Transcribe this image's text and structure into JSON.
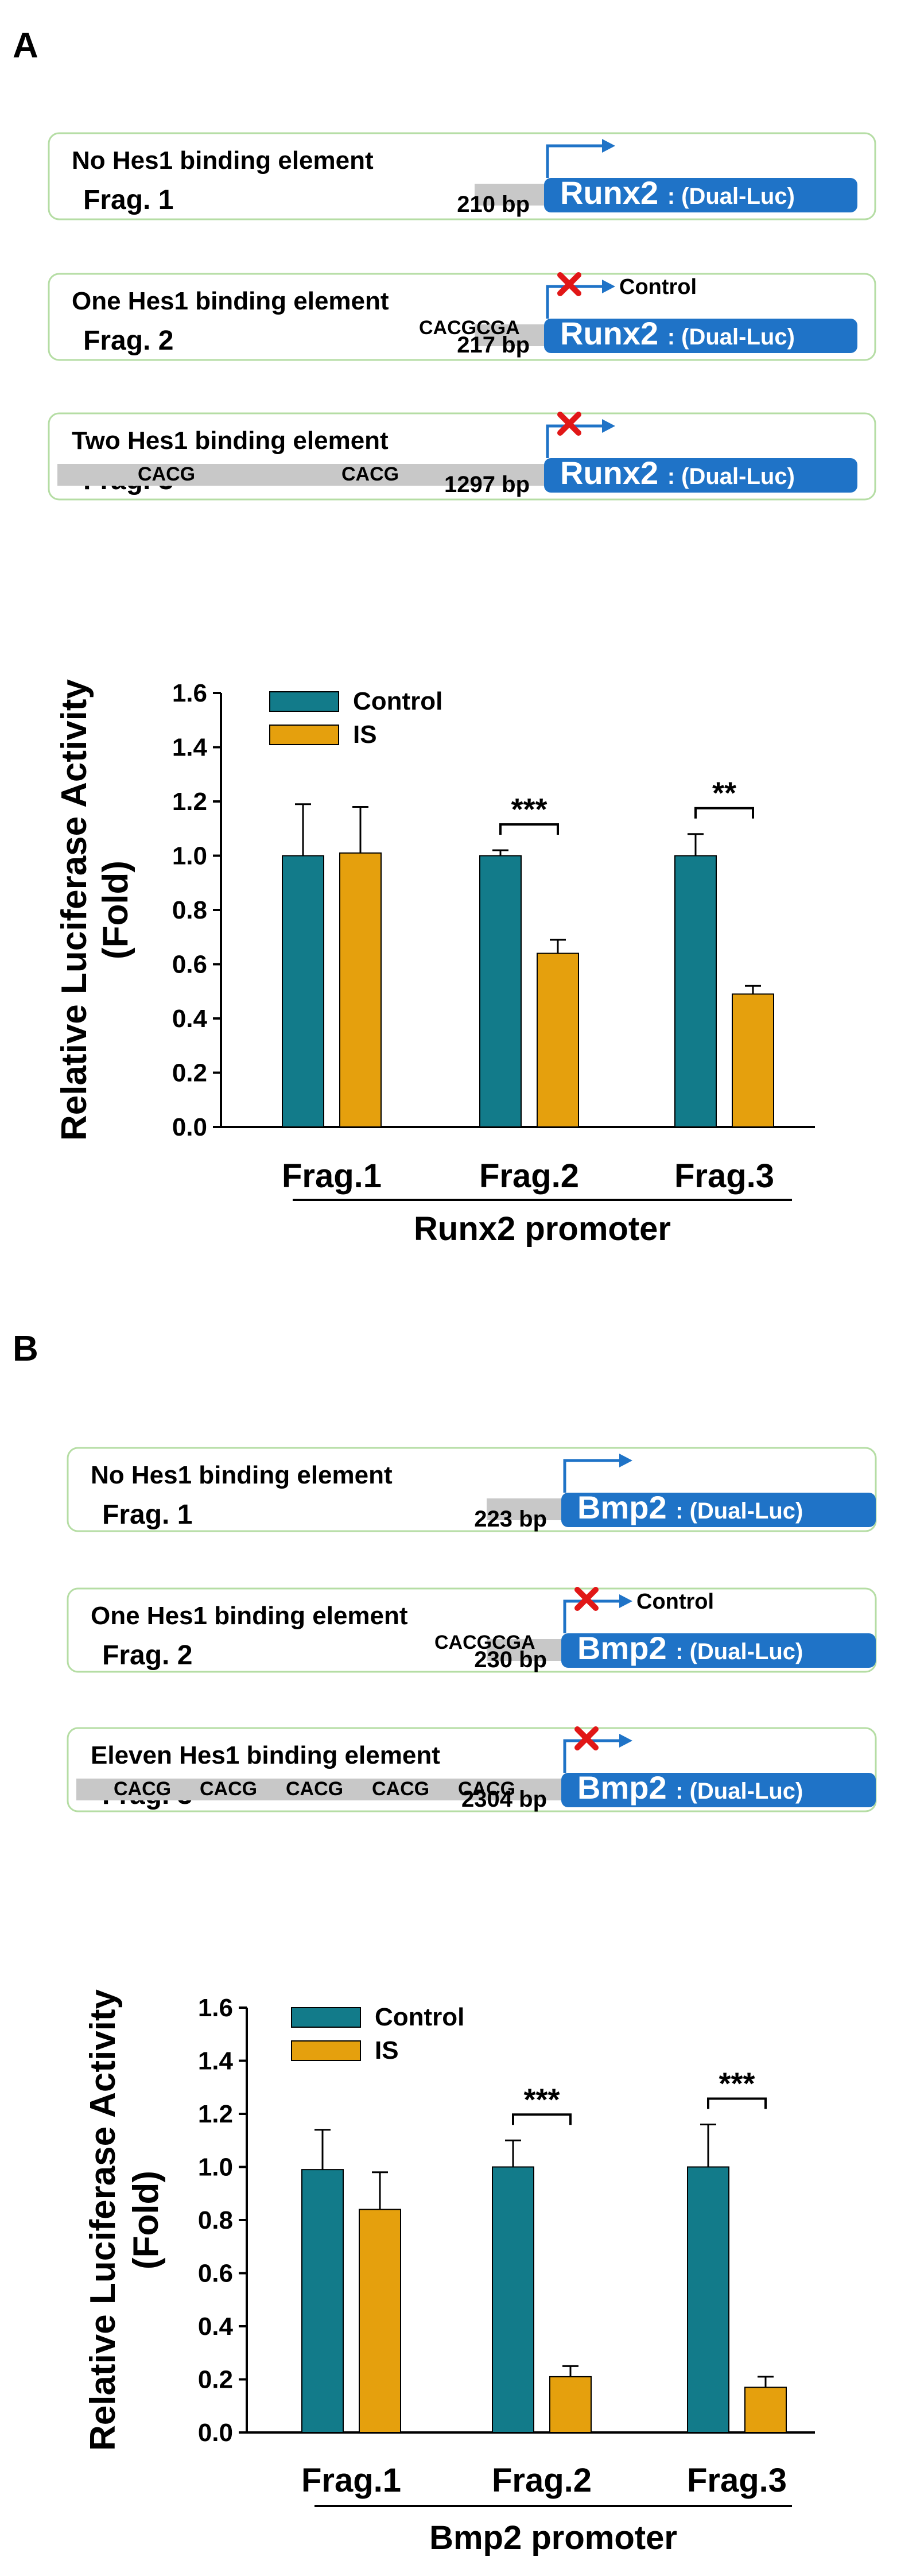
{
  "colors": {
    "control": "#127B8A",
    "is": "#E5A00D",
    "promoter_box": "#1F73C7",
    "panel_border": "#B5DDA4",
    "gray_bar": "#C8C8C8",
    "cross": "#E11717"
  },
  "panels": [
    {
      "letter": "A",
      "gene": "Runx2",
      "luc_suffix": ": (Dual-Luc)",
      "constructs": [
        {
          "title": "No Hes1 binding element",
          "frag": "Frag. 1",
          "bp": "210 bp",
          "seq": "",
          "seq_sites": [],
          "blocked": false,
          "note": ""
        },
        {
          "title": "One Hes1 binding element",
          "frag": "Frag. 2",
          "bp": "217 bp",
          "seq": "CACGCGA",
          "seq_sites": [],
          "blocked": true,
          "note": "Control"
        },
        {
          "title": "Two Hes1 binding element",
          "frag": "Frag. 3",
          "bp": "1297 bp",
          "seq": "",
          "seq_sites": [
            "CACG",
            "CACG"
          ],
          "blocked": true,
          "note": ""
        }
      ]
    },
    {
      "letter": "B",
      "gene": "Bmp2",
      "luc_suffix": ": (Dual-Luc)",
      "constructs": [
        {
          "title": "No Hes1 binding element",
          "frag": "Frag. 1",
          "bp": "223 bp",
          "seq": "",
          "seq_sites": [],
          "blocked": false,
          "note": ""
        },
        {
          "title": "One Hes1 binding element",
          "frag": "Frag. 2",
          "bp": "230 bp",
          "seq": "CACGCGA",
          "seq_sites": [],
          "blocked": true,
          "note": "Control"
        },
        {
          "title": "Eleven Hes1 binding element",
          "frag": "Frag. 3",
          "bp": "2304 bp",
          "seq": "",
          "seq_sites": [
            "CACG",
            "CACG",
            "CACG",
            "CACG",
            "CACG"
          ],
          "blocked": true,
          "note": ""
        }
      ]
    }
  ],
  "chart_data": [
    {
      "type": "bar",
      "title": "",
      "xlabel": "Runx2 promoter",
      "ylabel_lines": [
        "Relative Luciferase Activity",
        "(Fold)"
      ],
      "ylim": [
        0,
        1.6
      ],
      "yticks": [
        "0.0",
        "0.2",
        "0.4",
        "0.6",
        "0.8",
        "1.0",
        "1.2",
        "1.4",
        "1.6"
      ],
      "categories": [
        "Frag.1",
        "Frag.2",
        "Frag.3"
      ],
      "series": [
        {
          "name": "Control",
          "values": [
            1.0,
            1.0,
            1.0
          ],
          "errors": [
            0.19,
            0.02,
            0.08
          ]
        },
        {
          "name": "IS",
          "values": [
            1.01,
            0.64,
            0.49
          ],
          "errors": [
            0.17,
            0.05,
            0.03
          ]
        }
      ],
      "significance": [
        "",
        "***",
        "**"
      ],
      "legend": "top-left",
      "grid": false
    },
    {
      "type": "bar",
      "title": "",
      "xlabel": "Bmp2 promoter",
      "ylabel_lines": [
        "Relative Luciferase Activity",
        "(Fold)"
      ],
      "ylim": [
        0,
        1.6
      ],
      "yticks": [
        "0.0",
        "0.2",
        "0.4",
        "0.6",
        "0.8",
        "1.0",
        "1.2",
        "1.4",
        "1.6"
      ],
      "categories": [
        "Frag.1",
        "Frag.2",
        "Frag.3"
      ],
      "series": [
        {
          "name": "Control",
          "values": [
            0.99,
            1.0,
            1.0
          ],
          "errors": [
            0.15,
            0.1,
            0.16
          ]
        },
        {
          "name": "IS",
          "values": [
            0.84,
            0.21,
            0.17
          ],
          "errors": [
            0.14,
            0.04,
            0.04
          ]
        }
      ],
      "significance": [
        "",
        "***",
        "***"
      ],
      "legend": "top-left",
      "grid": false
    }
  ]
}
